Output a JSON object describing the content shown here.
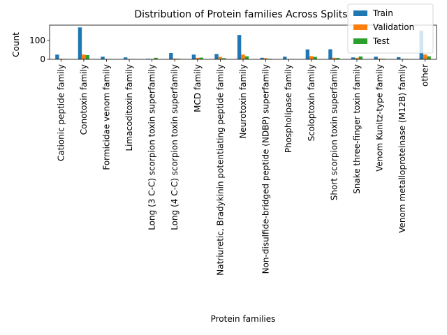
{
  "chart_data": {
    "type": "bar",
    "title": "Distribution of Protein families Across Splits",
    "xlabel": "Protein families",
    "ylabel": "Count",
    "ylim": [
      0,
      180
    ],
    "yticks": [
      0,
      100
    ],
    "categories": [
      "Cationic peptide family",
      "Conotoxin family",
      "Formicidae venom family",
      "Limacoditoxin family",
      "Long (3 C-C) scorpion toxin superfamily",
      "Long (4 C-C) scorpion toxin superfamily",
      "MCD family",
      "Natriuretic, Bradykinin potentiating peptide family",
      "Neurotoxin family",
      "Non-disulfide-bridged peptide (NDBP) superfamily",
      "Phospholipase family",
      "Scoloptoxin family",
      "Short scorpion toxin superfamily",
      "Snake three-finger toxin family",
      "Venom Kunitz-type family",
      "Venom metalloproteinase (M12B) family",
      "other"
    ],
    "series": [
      {
        "name": "Train",
        "color": "#1f77b4",
        "values": [
          25,
          168,
          14,
          10,
          3,
          33,
          25,
          28,
          128,
          8,
          14,
          52,
          53,
          10,
          14,
          11,
          150
        ]
      },
      {
        "name": "Validation",
        "color": "#ff7f0e",
        "values": [
          3,
          25,
          2,
          1,
          2,
          4,
          8,
          13,
          25,
          6,
          1,
          17,
          8,
          8,
          4,
          2,
          25
        ]
      },
      {
        "name": "Test",
        "color": "#2ca02c",
        "values": [
          2,
          22,
          1,
          1,
          8,
          3,
          9,
          6,
          16,
          3,
          1,
          13,
          7,
          15,
          3,
          2,
          16
        ]
      }
    ],
    "grid": false,
    "legend_position": "top-right"
  }
}
